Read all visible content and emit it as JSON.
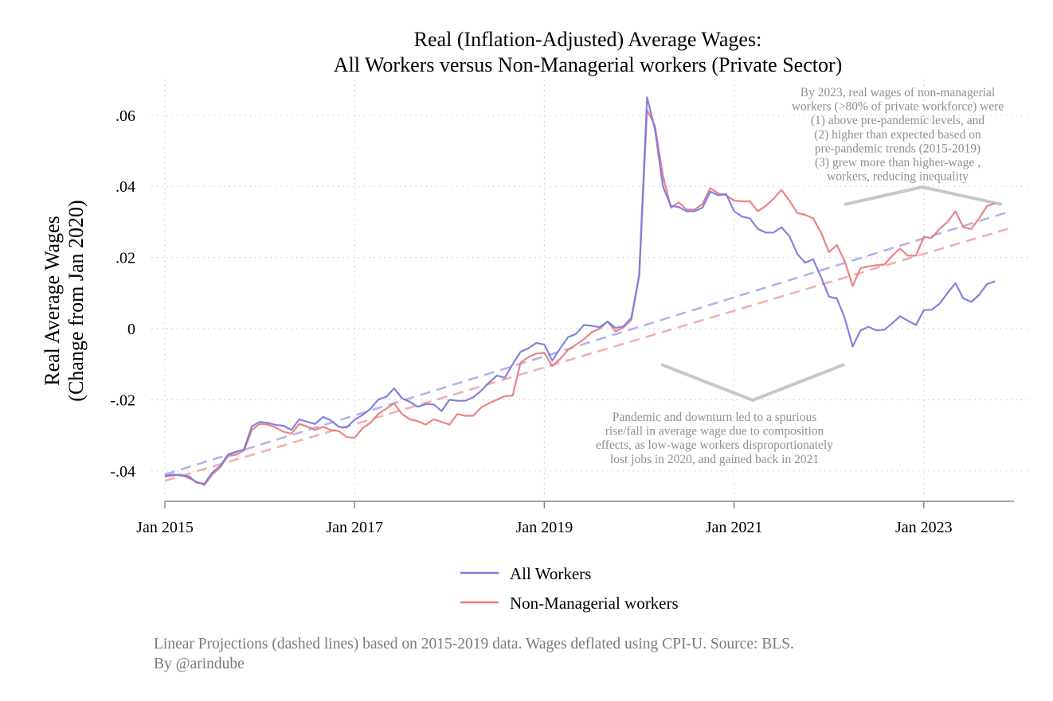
{
  "chart_data": {
    "type": "line",
    "title": [
      "Real (Inflation-Adjusted) Average Wages:",
      "All Workers versus Non-Managerial workers (Private Sector)"
    ],
    "ylabel": [
      "Real Average Wages",
      "(Change from Jan 2020)"
    ],
    "xlabel": "",
    "xlim": [
      2015,
      2024
    ],
    "ylim": [
      -0.048,
      0.068
    ],
    "x_ticks": [
      {
        "value": 2015,
        "label": "Jan 2015"
      },
      {
        "value": 2017,
        "label": "Jan 2017"
      },
      {
        "value": 2019,
        "label": "Jan 2019"
      },
      {
        "value": 2021,
        "label": "Jan 2021"
      },
      {
        "value": 2023,
        "label": "Jan 2023"
      }
    ],
    "y_ticks": [
      {
        "value": -0.04,
        "label": "-.04"
      },
      {
        "value": -0.02,
        "label": "-.02"
      },
      {
        "value": 0,
        "label": "0"
      },
      {
        "value": 0.02,
        "label": ".02"
      },
      {
        "value": 0.04,
        "label": ".04"
      },
      {
        "value": 0.06,
        "label": ".06"
      }
    ],
    "grid": true,
    "legend_placement": "bottom",
    "x_start": 2015.0,
    "x_step": 0.0833333,
    "series": [
      {
        "name": "All Workers",
        "color": "#7b7be0",
        "values": [
          -0.0414,
          -0.041,
          -0.0413,
          -0.0415,
          -0.0433,
          -0.0436,
          -0.0405,
          -0.0386,
          -0.0354,
          -0.0346,
          -0.034,
          -0.0275,
          -0.0262,
          -0.0265,
          -0.0271,
          -0.0273,
          -0.0285,
          -0.0255,
          -0.0262,
          -0.0268,
          -0.0248,
          -0.0258,
          -0.0276,
          -0.0278,
          -0.0256,
          -0.0243,
          -0.0226,
          -0.0199,
          -0.0192,
          -0.0168,
          -0.0196,
          -0.0206,
          -0.022,
          -0.0212,
          -0.0213,
          -0.0232,
          -0.02,
          -0.0203,
          -0.0203,
          -0.0193,
          -0.0175,
          -0.0152,
          -0.0132,
          -0.0138,
          -0.01,
          -0.0065,
          -0.0055,
          -0.004,
          -0.0045,
          -0.009,
          -0.0056,
          -0.0024,
          -0.0015,
          0.001,
          0.0008,
          0.0004,
          0.002,
          0.0002,
          0.0006,
          0.003,
          0.015,
          0.065,
          0.056,
          0.04,
          0.0345,
          0.0342,
          0.033,
          0.033,
          0.034,
          0.0385,
          0.0375,
          0.0378,
          0.033,
          0.0315,
          0.031,
          0.028,
          0.027,
          0.027,
          0.0285,
          0.026,
          0.021,
          0.0185,
          0.0195,
          0.0145,
          0.009,
          0.0085,
          0.003,
          -0.005,
          -0.0005,
          0.0005,
          -0.0005,
          -0.0003,
          0.0015,
          0.0035,
          0.0022,
          0.001,
          0.0052,
          0.0053,
          0.007,
          0.01,
          0.0128,
          0.0085,
          0.0075,
          0.0095,
          0.0125,
          0.0133
        ]
      },
      {
        "name": "Non-Managerial workers",
        "color": "#e87d7d",
        "values": [
          -0.0416,
          -0.0413,
          -0.041,
          -0.042,
          -0.043,
          -0.044,
          -0.041,
          -0.039,
          -0.0358,
          -0.0355,
          -0.0343,
          -0.0285,
          -0.0268,
          -0.027,
          -0.0278,
          -0.029,
          -0.0295,
          -0.0268,
          -0.0275,
          -0.0285,
          -0.0276,
          -0.0285,
          -0.0288,
          -0.0305,
          -0.0307,
          -0.028,
          -0.0265,
          -0.024,
          -0.0225,
          -0.021,
          -0.024,
          -0.0255,
          -0.026,
          -0.027,
          -0.0255,
          -0.0262,
          -0.027,
          -0.024,
          -0.0245,
          -0.0245,
          -0.0222,
          -0.021,
          -0.02,
          -0.019,
          -0.0188,
          -0.0095,
          -0.008,
          -0.007,
          -0.0068,
          -0.0105,
          -0.0085,
          -0.006,
          -0.0045,
          -0.003,
          -0.001,
          0.0,
          0.002,
          -0.0008,
          0.0003,
          0.0025,
          0.015,
          0.0615,
          0.057,
          0.043,
          0.034,
          0.0355,
          0.0335,
          0.0335,
          0.035,
          0.0395,
          0.038,
          0.0375,
          0.036,
          0.0358,
          0.0358,
          0.033,
          0.0345,
          0.0365,
          0.039,
          0.036,
          0.0325,
          0.032,
          0.031,
          0.027,
          0.0215,
          0.0235,
          0.019,
          0.012,
          0.017,
          0.0175,
          0.0178,
          0.018,
          0.0205,
          0.0225,
          0.0205,
          0.0205,
          0.0258,
          0.0255,
          0.028,
          0.03,
          0.033,
          0.0285,
          0.028,
          0.031,
          0.0345,
          0.0352
        ]
      }
    ],
    "projections": [
      {
        "series": "All Workers",
        "x": [
          2015.0,
          2023.917
        ],
        "y": [
          -0.041,
          0.033
        ],
        "style": "dashed"
      },
      {
        "series": "Non-Managerial workers",
        "x": [
          2015.0,
          2023.917
        ],
        "y": [
          -0.0428,
          0.0283
        ],
        "style": "dashed"
      }
    ],
    "annotations": [
      {
        "lines": [
          "By 2023, real wages of non-managerial",
          "workers (>80% of private workforce) were",
          "(1) above pre-pandemic levels, and",
          "(2) higher than expected based on",
          "pre-pandemic trends (2015-2019)",
          "(3) grew more than higher-wage ,",
          "workers, reducing inequality"
        ]
      },
      {
        "lines": [
          "Pandemic and downturn led to a spurious",
          "rise/fall in average wage due to composition",
          "effects, as low-wage workers disproportionately",
          "lost jobs in 2020, and gained back in 2021"
        ]
      }
    ],
    "footnote": [
      "Linear Projections (dashed lines) based on 2015-2019 data. Wages deflated using CPI-U. Source: BLS.",
      "By @arindube"
    ]
  }
}
